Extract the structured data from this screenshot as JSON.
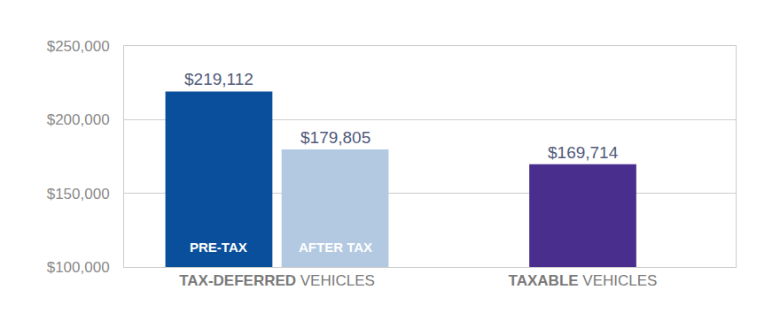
{
  "chart_data": {
    "type": "bar",
    "categories": [
      "TAX-DEFERRED VEHICLES",
      "TAXABLE VEHICLES"
    ],
    "series": [
      {
        "name": "PRE-TAX",
        "color": "#0a4f9c",
        "values": [
          219112,
          null
        ],
        "value_labels": [
          "$219,112",
          null
        ]
      },
      {
        "name": "AFTER TAX",
        "color": "#b3c9e1",
        "values": [
          179805,
          null
        ],
        "value_labels": [
          "$179,805",
          null
        ]
      },
      {
        "color": "#4a2e8e",
        "values": [
          null,
          169714
        ],
        "value_labels": [
          null,
          "$169,714"
        ]
      }
    ],
    "ylim": [
      100000,
      250000
    ],
    "yticks": [
      {
        "value": 100000,
        "label": "$100,000"
      },
      {
        "value": 150000,
        "label": "$150,000"
      },
      {
        "value": 200000,
        "label": "$200,000"
      },
      {
        "value": 250000,
        "label": "$250,000"
      }
    ],
    "grid": true,
    "data_labels": true
  }
}
